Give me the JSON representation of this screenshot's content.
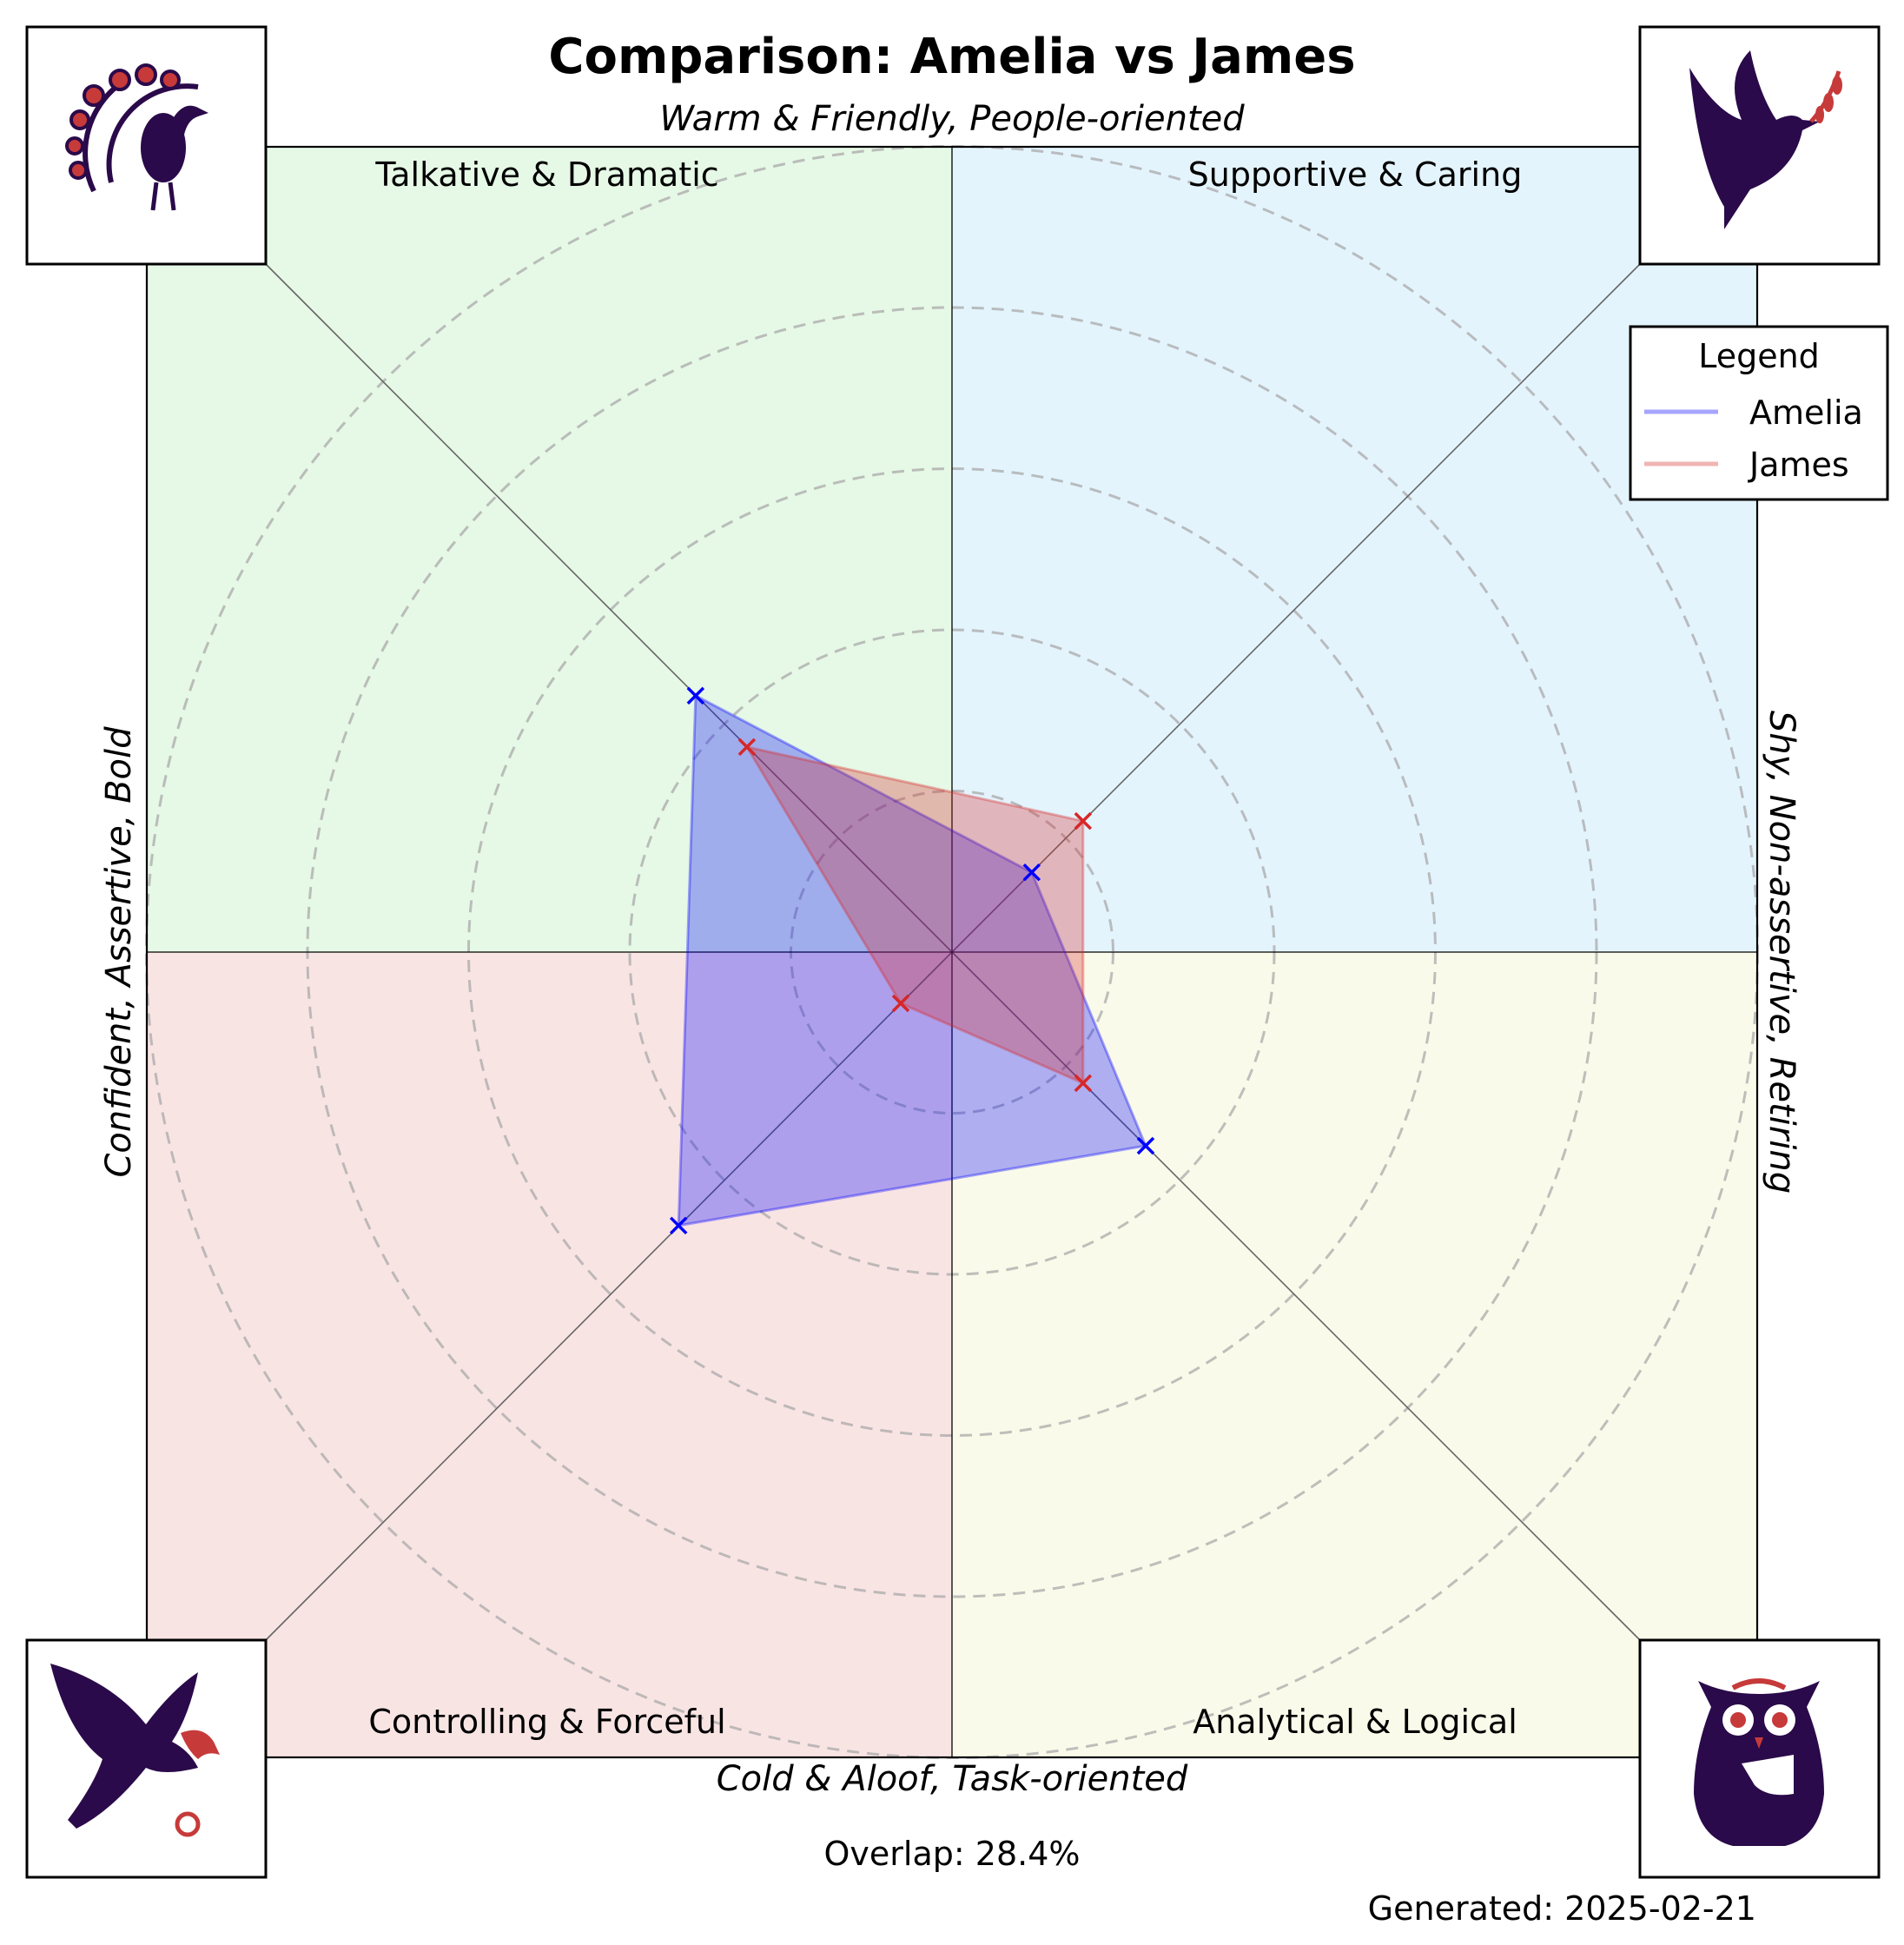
{
  "chart_data": {
    "type": "radar-quadrant",
    "title": "Comparison: Amelia vs James",
    "axis_labels": {
      "top": "Warm & Friendly, People-oriented",
      "bottom": "Cold & Aloof, Task-oriented",
      "left": "Confident, Assertive, Bold",
      "right": "Shy, Non-assertive, Retiring"
    },
    "quadrants": [
      {
        "name": "Talkative & Dramatic",
        "color": "#e6f8e6",
        "icon": "peacock-icon"
      },
      {
        "name": "Supportive & Caring",
        "color": "#e4f4fd",
        "icon": "dove-icon"
      },
      {
        "name": "Controlling & Forceful",
        "color": "#f9e4e4",
        "icon": "eagle-icon"
      },
      {
        "name": "Analytical & Logical",
        "color": "#fafaea",
        "icon": "owl-icon"
      }
    ],
    "axes": [
      "Talkative & Dramatic",
      "Supportive & Caring",
      "Analytical & Logical",
      "Controlling & Forceful"
    ],
    "rlim": [
      0,
      100
    ],
    "grid_rings": 5,
    "series": [
      {
        "name": "Amelia",
        "color": "#0000ff",
        "values": [
          45,
          14,
          34,
          48
        ]
      },
      {
        "name": "James",
        "color": "#d62728",
        "values": [
          36,
          23,
          23,
          9
        ]
      }
    ],
    "legend": {
      "title": "Legend",
      "placement": "top-right"
    },
    "overlap_label": "Overlap: 28.4%",
    "generated_label": "Generated: 2025-02-21"
  }
}
